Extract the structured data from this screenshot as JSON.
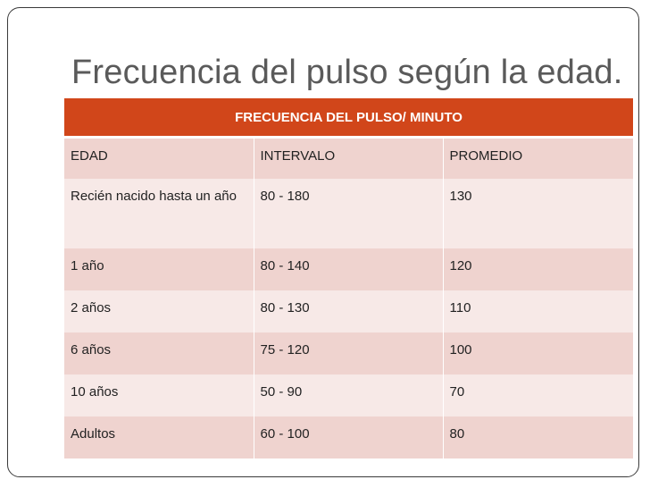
{
  "slide": {
    "title": "Frecuencia del pulso según la edad."
  },
  "table": {
    "header": "FRECUENCIA DEL PULSO/ MINUTO",
    "columns": [
      "EDAD",
      "INTERVALO",
      "PROMEDIO"
    ],
    "rows": [
      [
        "Recién  nacido hasta un año",
        "80 - 180",
        "130"
      ],
      [
        "1 año",
        "80 - 140",
        "120"
      ],
      [
        "2 años",
        "80 - 130",
        "110"
      ],
      [
        "6 años",
        "75 - 120",
        "100"
      ],
      [
        "10 años",
        "50 - 90",
        "70"
      ],
      [
        "Adultos",
        "60 - 100",
        "80"
      ]
    ]
  },
  "colors": {
    "header_bg": "#d1461a",
    "row_dark": "#efd3cf",
    "row_light": "#f7e9e7",
    "title_text": "#5a5a5a"
  }
}
